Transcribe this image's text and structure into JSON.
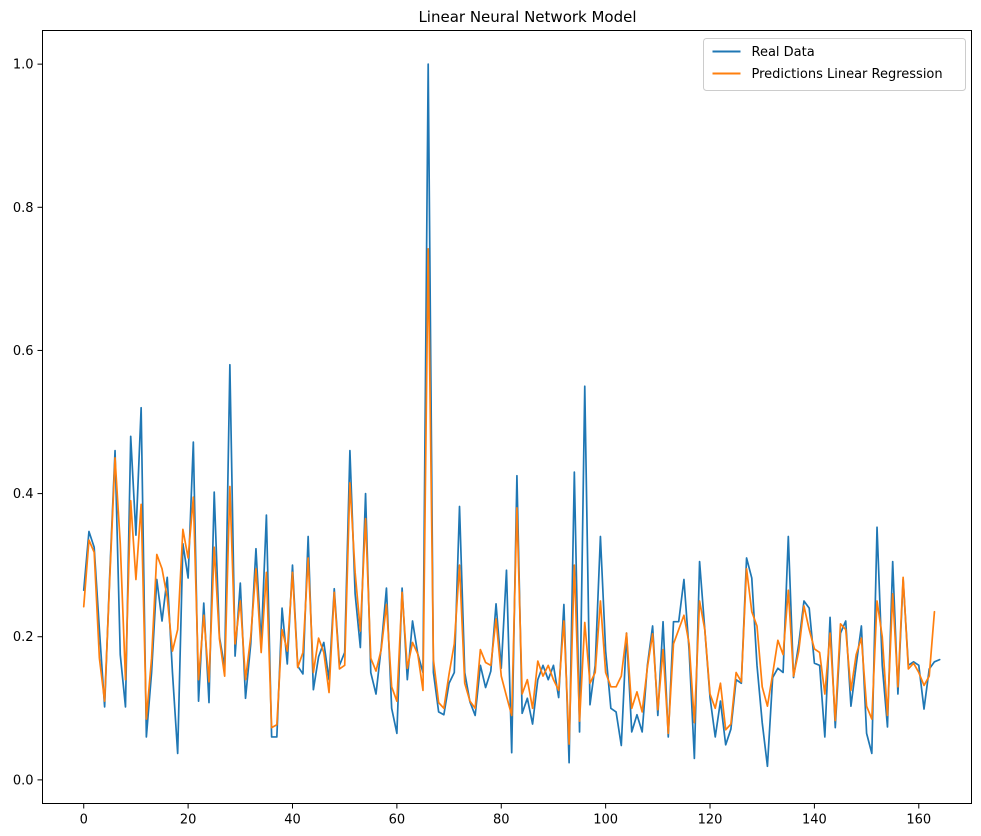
{
  "chart_data": {
    "type": "line",
    "title": "Linear Neural Network Model",
    "xlabel": "",
    "ylabel": "",
    "xlim": [
      -7.9,
      170.1
    ],
    "ylim": [
      -0.033,
      1.047
    ],
    "xticks": [
      0,
      20,
      40,
      60,
      80,
      100,
      120,
      140,
      160
    ],
    "yticks": [
      0.0,
      0.2,
      0.4,
      0.6,
      0.8,
      1.0
    ],
    "xtick_labels": [
      "0",
      "20",
      "40",
      "60",
      "80",
      "100",
      "120",
      "140",
      "160"
    ],
    "ytick_labels": [
      "0.0",
      "0.2",
      "0.4",
      "0.6",
      "0.8",
      "1.0"
    ],
    "grid": false,
    "legend_position": "top-right",
    "series": [
      {
        "name": "Real Data",
        "color": "#1f77b4",
        "values": [
          0.265,
          0.347,
          0.325,
          0.21,
          0.102,
          0.29,
          0.46,
          0.175,
          0.102,
          0.48,
          0.342,
          0.52,
          0.06,
          0.15,
          0.28,
          0.222,
          0.283,
          0.15,
          0.037,
          0.33,
          0.282,
          0.472,
          0.11,
          0.247,
          0.108,
          0.402,
          0.2,
          0.157,
          0.58,
          0.173,
          0.275,
          0.114,
          0.19,
          0.323,
          0.19,
          0.37,
          0.06,
          0.06,
          0.24,
          0.162,
          0.3,
          0.159,
          0.148,
          0.34,
          0.126,
          0.172,
          0.192,
          0.14,
          0.267,
          0.16,
          0.178,
          0.46,
          0.26,
          0.185,
          0.4,
          0.15,
          0.12,
          0.185,
          0.268,
          0.1,
          0.065,
          0.268,
          0.14,
          0.222,
          0.176,
          0.15,
          1.0,
          0.15,
          0.095,
          0.091,
          0.135,
          0.15,
          0.382,
          0.15,
          0.109,
          0.09,
          0.16,
          0.129,
          0.152,
          0.246,
          0.156,
          0.293,
          0.038,
          0.425,
          0.093,
          0.114,
          0.078,
          0.14,
          0.16,
          0.14,
          0.16,
          0.115,
          0.245,
          0.024,
          0.43,
          0.067,
          0.55,
          0.105,
          0.16,
          0.34,
          0.18,
          0.1,
          0.095,
          0.048,
          0.205,
          0.067,
          0.091,
          0.067,
          0.16,
          0.215,
          0.09,
          0.221,
          0.06,
          0.221,
          0.221,
          0.28,
          0.18,
          0.03,
          0.305,
          0.21,
          0.115,
          0.06,
          0.11,
          0.049,
          0.071,
          0.14,
          0.135,
          0.31,
          0.282,
          0.16,
          0.08,
          0.019,
          0.143,
          0.156,
          0.15,
          0.34,
          0.143,
          0.19,
          0.25,
          0.24,
          0.163,
          0.16,
          0.06,
          0.227,
          0.073,
          0.205,
          0.222,
          0.103,
          0.16,
          0.215,
          0.065,
          0.037,
          0.353,
          0.16,
          0.074,
          0.305,
          0.12,
          0.28,
          0.16,
          0.165,
          0.16,
          0.099,
          0.155,
          0.165,
          0.168
        ]
      },
      {
        "name": "Predictions Linear Regression",
        "color": "#ff7f0e",
        "values": [
          0.242,
          0.335,
          0.318,
          0.17,
          0.11,
          0.283,
          0.45,
          0.33,
          0.14,
          0.39,
          0.28,
          0.385,
          0.085,
          0.17,
          0.315,
          0.295,
          0.255,
          0.18,
          0.21,
          0.35,
          0.31,
          0.395,
          0.14,
          0.23,
          0.137,
          0.325,
          0.197,
          0.145,
          0.41,
          0.19,
          0.25,
          0.14,
          0.2,
          0.295,
          0.178,
          0.29,
          0.073,
          0.077,
          0.21,
          0.18,
          0.29,
          0.157,
          0.178,
          0.31,
          0.15,
          0.198,
          0.178,
          0.122,
          0.262,
          0.155,
          0.16,
          0.415,
          0.29,
          0.208,
          0.365,
          0.17,
          0.152,
          0.182,
          0.245,
          0.13,
          0.11,
          0.262,
          0.156,
          0.192,
          0.176,
          0.125,
          0.742,
          0.168,
          0.108,
          0.1,
          0.148,
          0.19,
          0.3,
          0.135,
          0.11,
          0.1,
          0.182,
          0.164,
          0.16,
          0.225,
          0.145,
          0.117,
          0.09,
          0.38,
          0.12,
          0.14,
          0.1,
          0.166,
          0.145,
          0.16,
          0.14,
          0.125,
          0.222,
          0.05,
          0.3,
          0.082,
          0.22,
          0.135,
          0.15,
          0.25,
          0.15,
          0.13,
          0.13,
          0.145,
          0.205,
          0.1,
          0.123,
          0.095,
          0.157,
          0.204,
          0.098,
          0.182,
          0.065,
          0.19,
          0.21,
          0.23,
          0.19,
          0.08,
          0.25,
          0.21,
          0.12,
          0.1,
          0.135,
          0.07,
          0.078,
          0.15,
          0.137,
          0.295,
          0.235,
          0.215,
          0.13,
          0.103,
          0.148,
          0.195,
          0.175,
          0.265,
          0.145,
          0.18,
          0.243,
          0.21,
          0.183,
          0.178,
          0.12,
          0.205,
          0.083,
          0.218,
          0.21,
          0.125,
          0.175,
          0.198,
          0.103,
          0.085,
          0.25,
          0.2,
          0.09,
          0.26,
          0.13,
          0.283,
          0.155,
          0.163,
          0.15,
          0.132,
          0.145,
          0.235
        ]
      }
    ]
  }
}
